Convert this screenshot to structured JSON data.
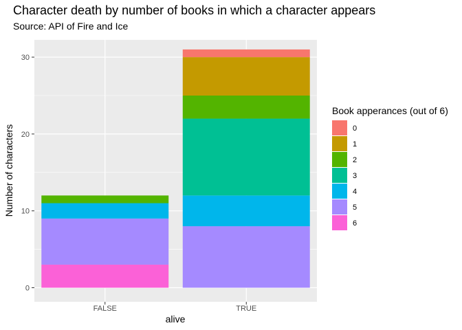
{
  "chart_data": {
    "type": "bar",
    "stacked": true,
    "title": "Character death by number of books in which a character appears",
    "subtitle": "Source: API of Fire and Ice",
    "xlabel": "alive",
    "ylabel": "Number of characters",
    "categories": [
      "FALSE",
      "TRUE"
    ],
    "ylim": [
      0,
      31
    ],
    "yticks": [
      0,
      10,
      20,
      30
    ],
    "grid": true,
    "legend": {
      "title": "Book apperances (out of 6)",
      "placement": "right"
    },
    "series": [
      {
        "name": "0",
        "color": "#F8766D",
        "values": [
          0,
          1
        ]
      },
      {
        "name": "1",
        "color": "#C49A00",
        "values": [
          0,
          5
        ]
      },
      {
        "name": "2",
        "color": "#53B400",
        "values": [
          1,
          3
        ]
      },
      {
        "name": "3",
        "color": "#00C094",
        "values": [
          0,
          10
        ]
      },
      {
        "name": "4",
        "color": "#00B6EB",
        "values": [
          2,
          4
        ]
      },
      {
        "name": "5",
        "color": "#A58AFF",
        "values": [
          6,
          8
        ]
      },
      {
        "name": "6",
        "color": "#FB61D7",
        "values": [
          3,
          0
        ]
      }
    ]
  }
}
